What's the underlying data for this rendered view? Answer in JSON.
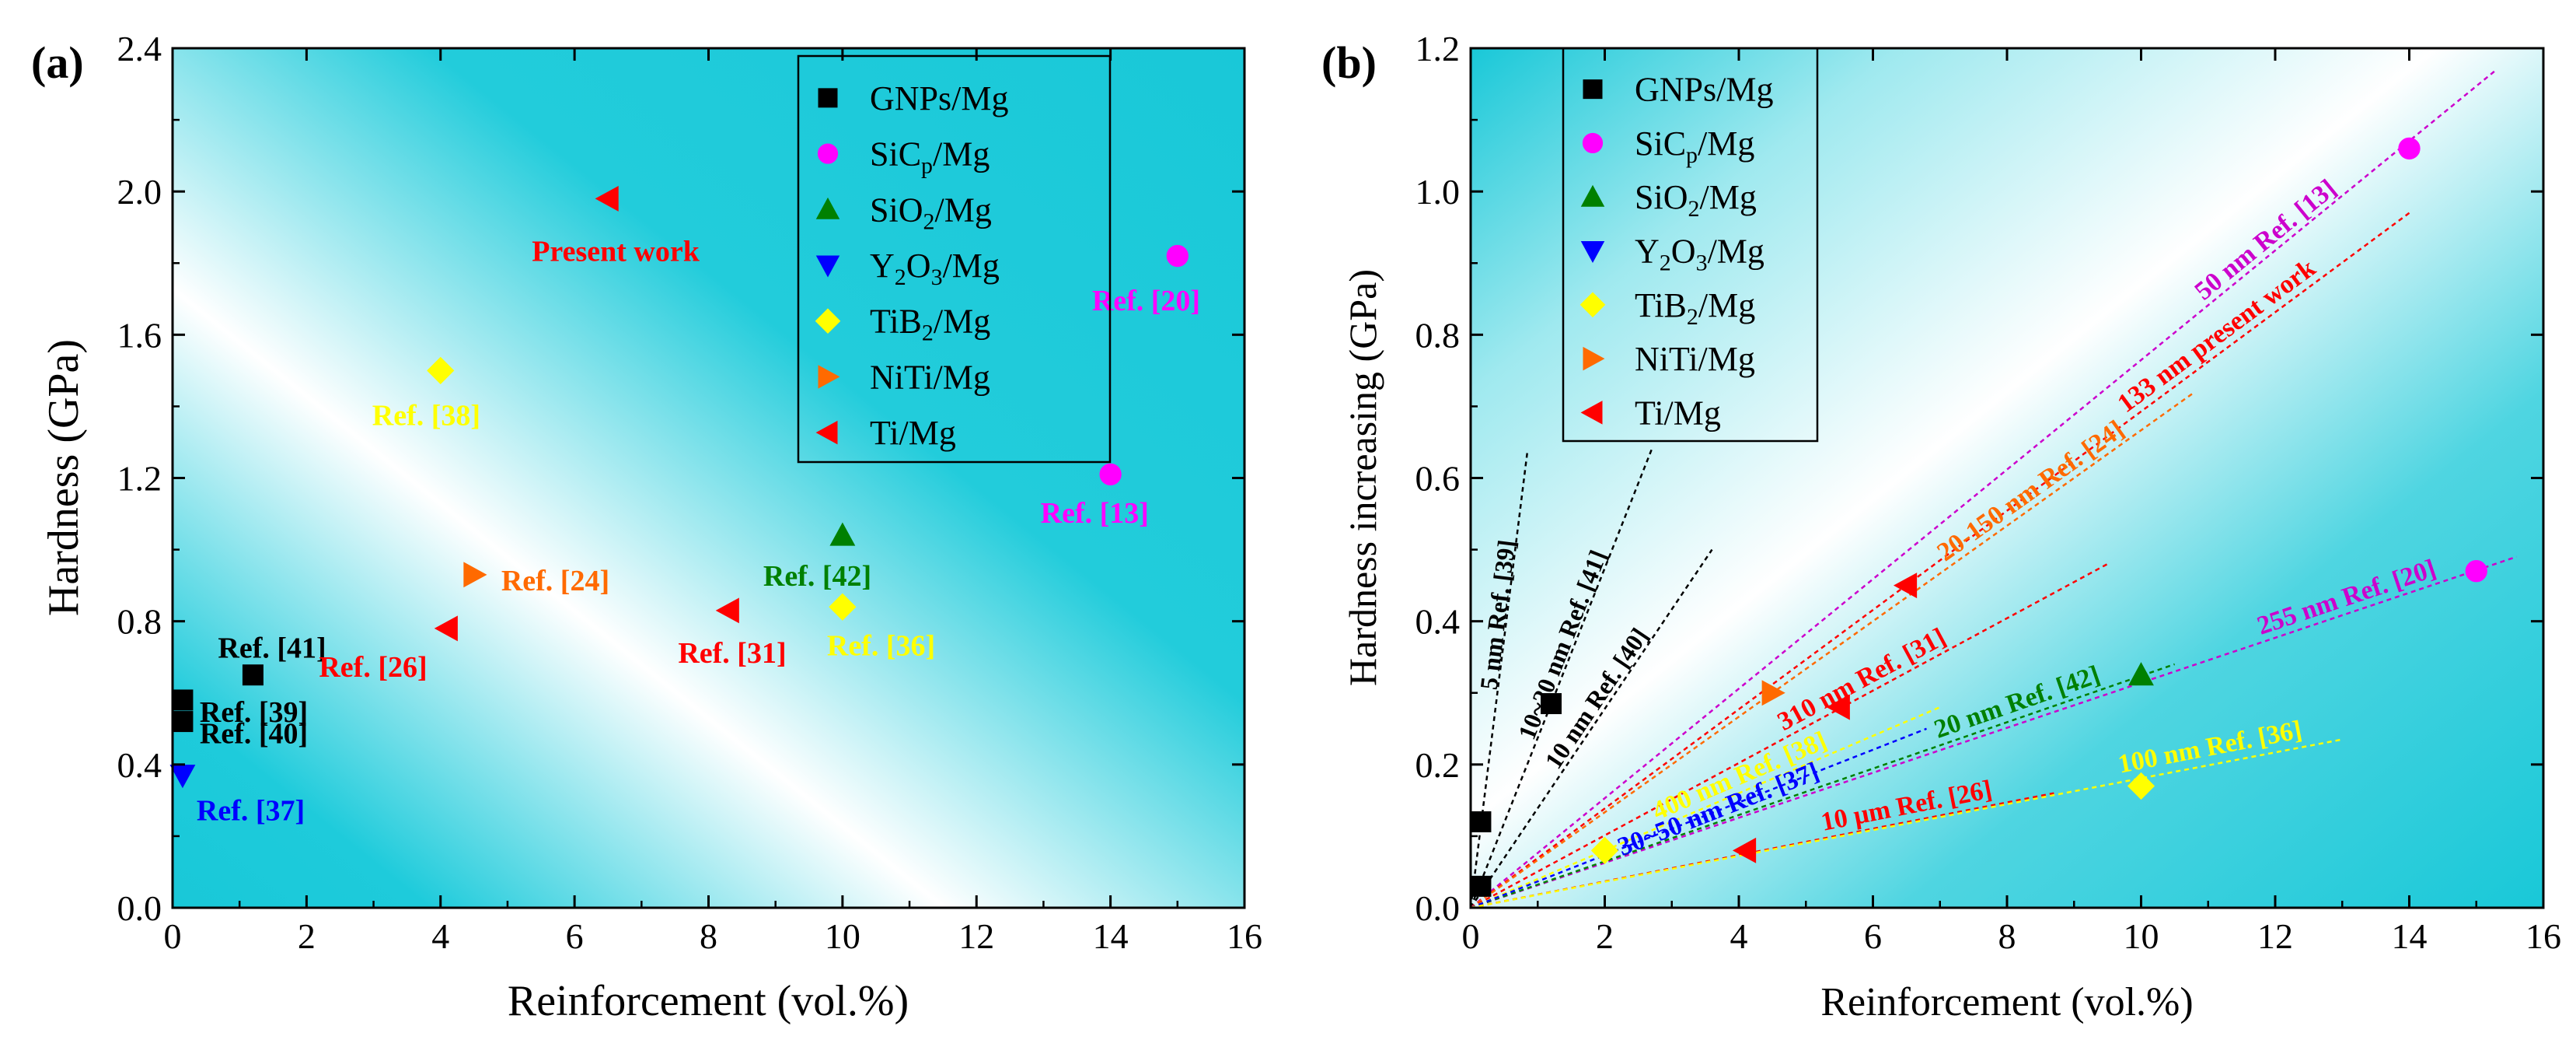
{
  "colors": {
    "GNPs/Mg": "#000000",
    "SiCp/Mg": "#ff00ff",
    "SiO2/Mg": "#008000",
    "Y2O3/Mg": "#0000ff",
    "TiB2/Mg": "#ffff00",
    "NiTi/Mg": "#ff6a00",
    "Ti/Mg": "#ff0000",
    "bg_cyan": "#19c8d8"
  },
  "chart_data": [
    {
      "panel": "(a)",
      "type": "scatter",
      "xlabel": "Reinforcement (vol.%)",
      "ylabel": "Hardness (GPa)",
      "xlim": [
        0,
        16
      ],
      "ylim": [
        0,
        2.4
      ],
      "xticks": [
        0,
        2,
        4,
        6,
        8,
        10,
        12,
        14,
        16
      ],
      "yticks": [
        0.0,
        0.4,
        0.8,
        1.2,
        1.6,
        2.0,
        2.4
      ],
      "tick_labels_x": [
        "0",
        "2",
        "4",
        "6",
        "8",
        "10",
        "12",
        "14",
        "16"
      ],
      "tick_labels_y": [
        "0.0",
        "0.4",
        "0.8",
        "1.2",
        "1.6",
        "2.0",
        "2.4"
      ],
      "legend": {
        "placement": "top-right",
        "entries": [
          {
            "series": "GNPs/Mg",
            "marker": "square",
            "label": "GNPs/Mg",
            "main": "GNPs/Mg"
          },
          {
            "series": "SiCp/Mg",
            "marker": "circle",
            "label": "SiCp/Mg",
            "main": "SiC",
            "sub": "p",
            "rest": "/Mg"
          },
          {
            "series": "SiO2/Mg",
            "marker": "triangle-up",
            "label": "SiO2/Mg",
            "main": "SiO",
            "sub": "2",
            "rest": "/Mg"
          },
          {
            "series": "Y2O3/Mg",
            "marker": "triangle-down",
            "label": "Y2O3/Mg",
            "main": "Y",
            "sub": "2",
            "rest": "O",
            "sub2": "3",
            "rest2": "/Mg"
          },
          {
            "series": "TiB2/Mg",
            "marker": "diamond",
            "label": "TiB2/Mg",
            "main": "TiB",
            "sub": "2",
            "rest": "/Mg"
          },
          {
            "series": "NiTi/Mg",
            "marker": "triangle-right",
            "label": "NiTi/Mg",
            "main": "NiTi/Mg"
          },
          {
            "series": "Ti/Mg",
            "marker": "triangle-left",
            "label": "Ti/Mg",
            "main": "Ti/Mg"
          }
        ]
      },
      "points": [
        {
          "series": "GNPs/Mg",
          "x": 0.15,
          "y": 0.58,
          "label": "Ref. [39]"
        },
        {
          "series": "GNPs/Mg",
          "x": 0.15,
          "y": 0.52,
          "label": "Ref. [40]"
        },
        {
          "series": "GNPs/Mg",
          "x": 1.2,
          "y": 0.65,
          "label": "Ref. [41]"
        },
        {
          "series": "Y2O3/Mg",
          "x": 0.15,
          "y": 0.37,
          "label": "Ref. [37]"
        },
        {
          "series": "TiB2/Mg",
          "x": 4.0,
          "y": 1.5,
          "label": "Ref. [38]"
        },
        {
          "series": "TiB2/Mg",
          "x": 10.0,
          "y": 0.84,
          "label": "Ref. [36]"
        },
        {
          "series": "NiTi/Mg",
          "x": 4.5,
          "y": 0.93,
          "label": "Ref. [24]"
        },
        {
          "series": "Ti/Mg",
          "x": 4.1,
          "y": 0.78,
          "label": "Ref. [26]"
        },
        {
          "series": "Ti/Mg",
          "x": 8.3,
          "y": 0.83,
          "label": "Ref. [31]"
        },
        {
          "series": "Ti/Mg",
          "x": 6.5,
          "y": 1.98,
          "label": "Present work"
        },
        {
          "series": "SiO2/Mg",
          "x": 10.0,
          "y": 1.04,
          "label": "Ref. [42]"
        },
        {
          "series": "SiCp/Mg",
          "x": 14.0,
          "y": 1.21,
          "label": "Ref. [13]"
        },
        {
          "series": "SiCp/Mg",
          "x": 15.0,
          "y": 1.82,
          "label": "Ref. [20]"
        }
      ]
    },
    {
      "panel": "(b)",
      "type": "scatter",
      "xlabel": "Reinforcement (vol.%)",
      "ylabel": "Hardness increasing (GPa)",
      "xlim": [
        0,
        16
      ],
      "ylim": [
        0,
        1.2
      ],
      "xticks": [
        0,
        2,
        4,
        6,
        8,
        10,
        12,
        14,
        16
      ],
      "yticks": [
        0.0,
        0.2,
        0.4,
        0.6,
        0.8,
        1.0,
        1.2
      ],
      "tick_labels_x": [
        "0",
        "2",
        "4",
        "6",
        "8",
        "10",
        "12",
        "14",
        "16"
      ],
      "tick_labels_y": [
        "0.0",
        "0.2",
        "0.4",
        "0.6",
        "0.8",
        "1.0",
        "1.2"
      ],
      "legend": {
        "placement": "top-left",
        "same_as_panel_a": true
      },
      "points": [
        {
          "series": "GNPs/Mg",
          "x": 0.15,
          "y": 0.03
        },
        {
          "series": "GNPs/Mg",
          "x": 0.15,
          "y": 0.12
        },
        {
          "series": "GNPs/Mg",
          "x": 1.2,
          "y": 0.285
        },
        {
          "series": "TiB2/Mg",
          "x": 2.0,
          "y": 0.08
        },
        {
          "series": "TiB2/Mg",
          "x": 10.0,
          "y": 0.17
        },
        {
          "series": "Ti/Mg",
          "x": 4.1,
          "y": 0.08
        },
        {
          "series": "Ti/Mg",
          "x": 5.5,
          "y": 0.28
        },
        {
          "series": "Ti/Mg",
          "x": 6.5,
          "y": 0.45
        },
        {
          "series": "NiTi/Mg",
          "x": 4.5,
          "y": 0.3
        },
        {
          "series": "SiO2/Mg",
          "x": 10.0,
          "y": 0.325
        },
        {
          "series": "SiCp/Mg",
          "x": 14.0,
          "y": 1.06
        },
        {
          "series": "SiCp/Mg",
          "x": 15.0,
          "y": 0.47
        }
      ],
      "trend_lines": [
        {
          "x_end": 0.85,
          "y_end": 0.64,
          "color": "#000000",
          "label": "5 nm Ref. [39]"
        },
        {
          "x_end": 2.7,
          "y_end": 0.64,
          "color": "#000000",
          "label": "10~20 nm Ref. [41]"
        },
        {
          "x_end": 3.6,
          "y_end": 0.5,
          "color": "#000000",
          "label": "10 nm Ref. [40]"
        },
        {
          "x_end": 15.3,
          "y_end": 1.17,
          "color": "#cc00cc",
          "label": "50 nm Ref. [13]"
        },
        {
          "x_end": 14.0,
          "y_end": 0.97,
          "color": "#ff0000",
          "label": "133 nm present work"
        },
        {
          "x_end": 10.8,
          "y_end": 0.72,
          "color": "#ff6a00",
          "label": "20-150 nm Ref. [24]"
        },
        {
          "x_end": 9.5,
          "y_end": 0.48,
          "color": "#ff0000",
          "label": "310 nm Ref. [31]"
        },
        {
          "x_end": 15.6,
          "y_end": 0.49,
          "color": "#cc00cc",
          "label": "255 nm Ref. [20]"
        },
        {
          "x_end": 10.5,
          "y_end": 0.34,
          "color": "#008000",
          "label": "20 nm Ref. [42]"
        },
        {
          "x_end": 7.0,
          "y_end": 0.28,
          "color": "#ffff00",
          "label": "400 nm Ref. [38]"
        },
        {
          "x_end": 6.8,
          "y_end": 0.25,
          "color": "#0000ff",
          "label": "30~50 nm Ref. [37]"
        },
        {
          "x_end": 8.7,
          "y_end": 0.16,
          "color": "#ff0000",
          "label": "10 μm Ref. [26]"
        },
        {
          "x_end": 13.0,
          "y_end": 0.235,
          "color": "#ffff00",
          "label": "100 nm Ref. [36]"
        }
      ]
    }
  ]
}
